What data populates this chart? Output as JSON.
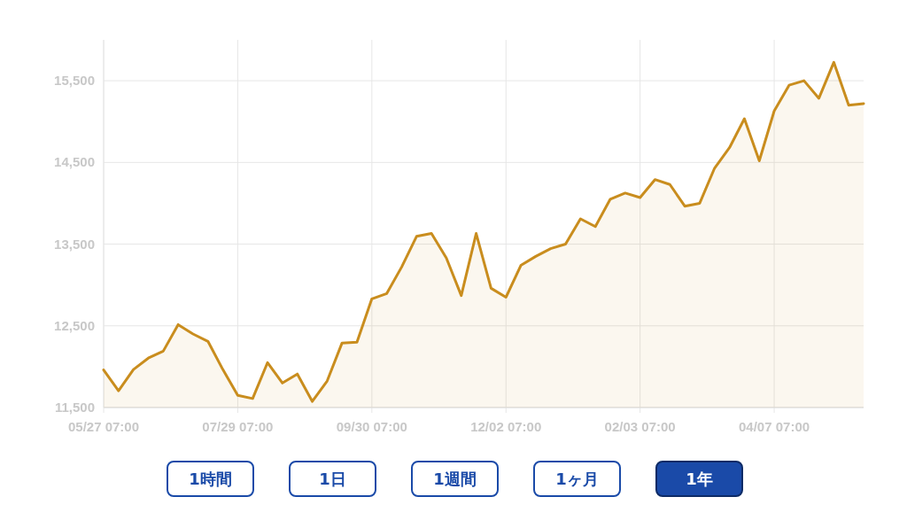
{
  "chart_data": {
    "type": "area",
    "categories": [
      "05/27 07:00",
      null,
      null,
      null,
      null,
      null,
      null,
      null,
      null,
      "07/29 07:00",
      null,
      null,
      null,
      null,
      null,
      null,
      null,
      null,
      "09/30 07:00",
      null,
      null,
      null,
      null,
      null,
      null,
      null,
      null,
      "12/02 07:00",
      null,
      null,
      null,
      null,
      null,
      null,
      null,
      null,
      "02/03 07:00",
      null,
      null,
      null,
      null,
      null,
      null,
      null,
      null,
      "04/07 07:00",
      null,
      null,
      null,
      null,
      null,
      null
    ],
    "series": [
      {
        "color": "#c98d1e",
        "values": [
          11960,
          11705,
          11965,
          12105,
          12190,
          12515,
          12400,
          12310,
          11965,
          11650,
          11610,
          12050,
          11800,
          11910,
          11575,
          11825,
          12290,
          12300,
          12830,
          12895,
          13220,
          13595,
          13630,
          13330,
          12870,
          13630,
          12960,
          12850,
          13240,
          13350,
          13445,
          13500,
          13810,
          13715,
          14050,
          14125,
          14070,
          14290,
          14230,
          13965,
          14000,
          14430,
          14680,
          15035,
          14520,
          15130,
          15445,
          15500,
          15285,
          15725,
          15200,
          15220
        ]
      }
    ],
    "ylim": [
      11500,
      16000
    ],
    "yticks": [
      {
        "value": 11500,
        "label": "11,500"
      },
      {
        "value": 12500,
        "label": "12,500"
      },
      {
        "value": 13500,
        "label": "13,500"
      },
      {
        "value": 14500,
        "label": "14,500"
      },
      {
        "value": 15500,
        "label": "15,500"
      }
    ],
    "grid": true,
    "annotations": [
      "1時間",
      "1日",
      "1週間",
      "1ヶ月",
      "1年"
    ]
  }
}
